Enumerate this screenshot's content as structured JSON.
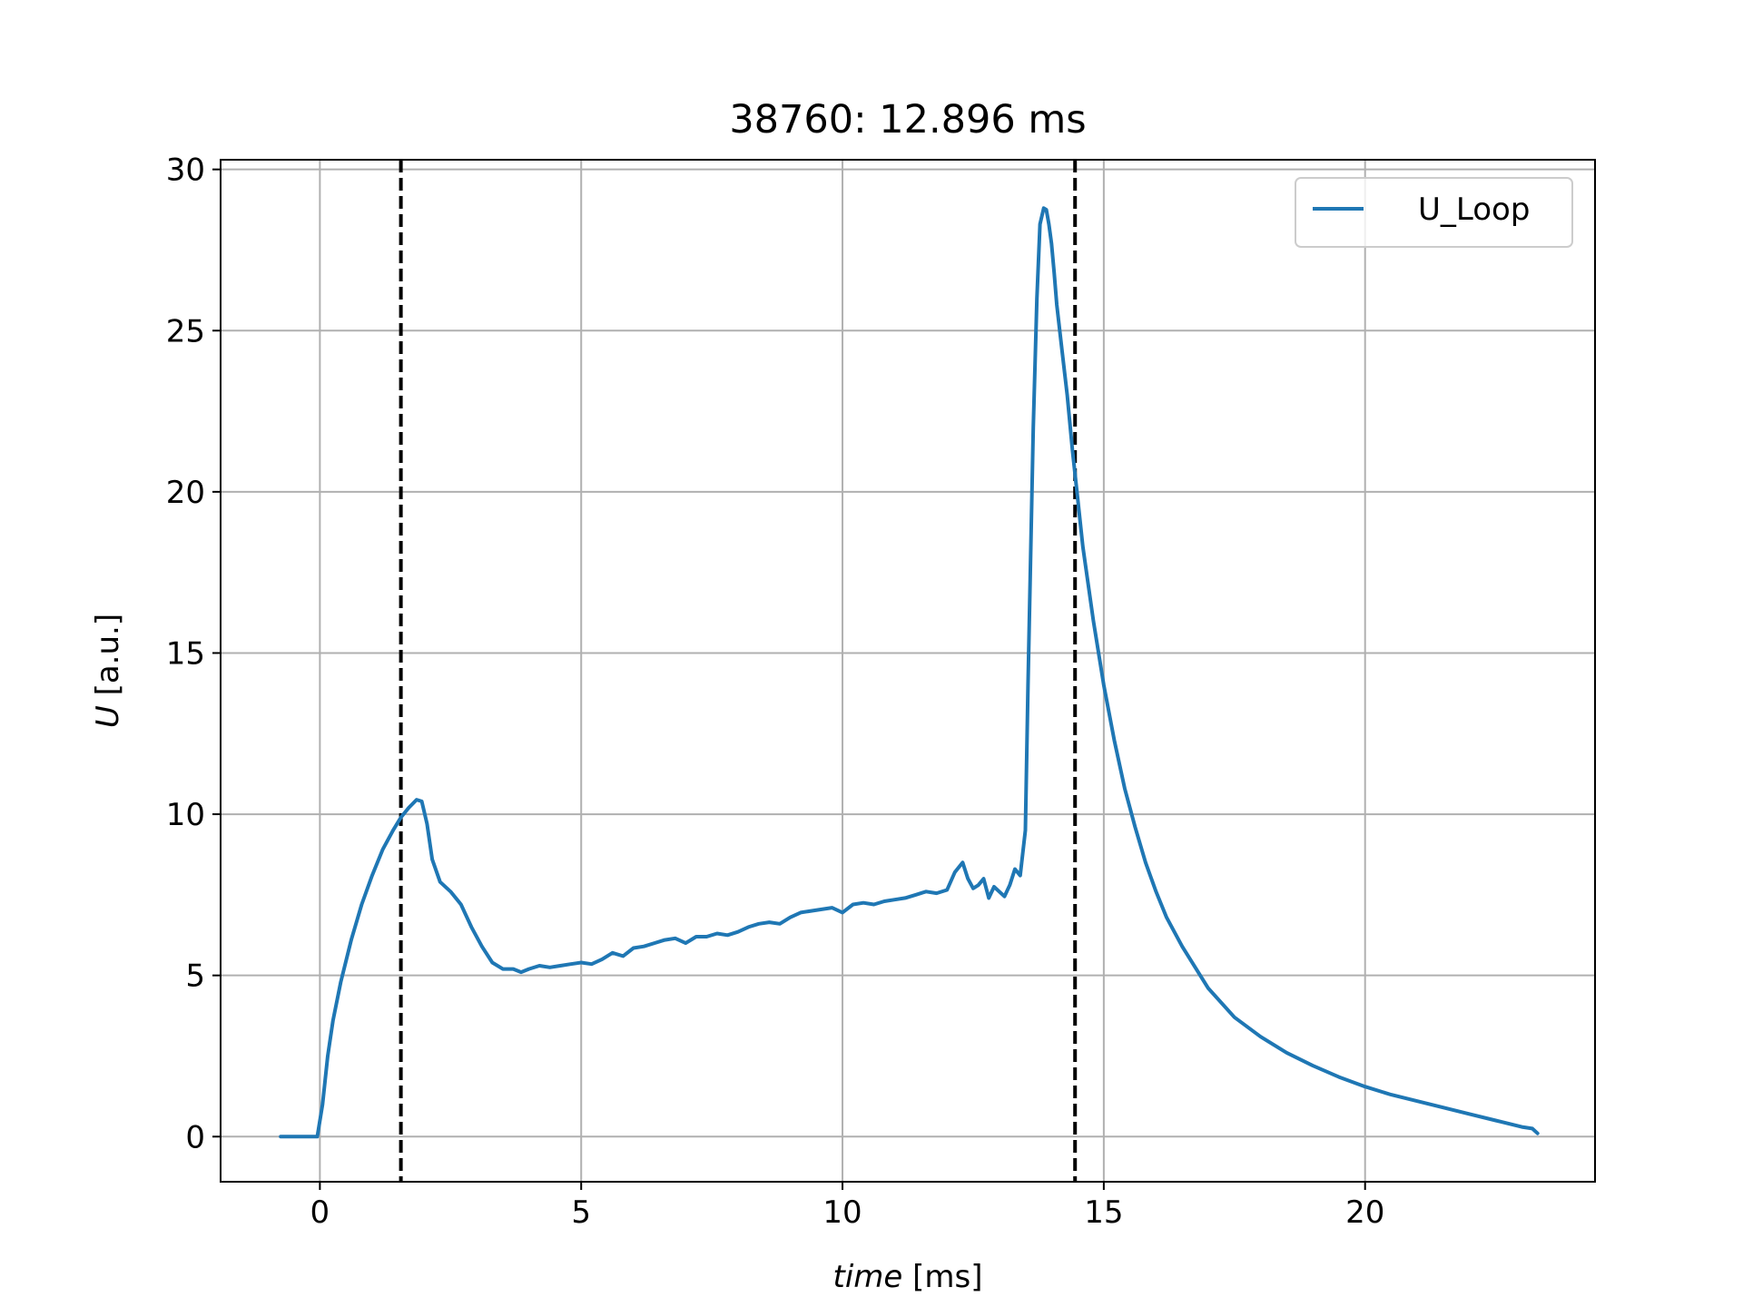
{
  "chart_data": {
    "type": "line",
    "title": "38760: 12.896 ms",
    "xlabel": {
      "italic": "time",
      "unit": " [ms]"
    },
    "ylabel": {
      "italic": "U",
      "unit": " [a.u.]"
    },
    "xlim": [
      -1.9,
      24.4
    ],
    "ylim": [
      -1.4,
      30.3
    ],
    "xticks": [
      0,
      5,
      10,
      15,
      20
    ],
    "yticks": [
      0,
      5,
      10,
      15,
      20,
      25,
      30
    ],
    "grid": true,
    "legend_position": "top-right",
    "vlines": [
      {
        "x": 1.55,
        "color": "#000000",
        "style": "dashed"
      },
      {
        "x": 14.45,
        "color": "#000000",
        "style": "dashed"
      }
    ],
    "series": [
      {
        "name": "U_Loop",
        "color": "#1f77b4",
        "x": [
          -0.75,
          -0.5,
          -0.3,
          -0.15,
          -0.05,
          0.05,
          0.15,
          0.25,
          0.4,
          0.6,
          0.8,
          1.0,
          1.2,
          1.4,
          1.55,
          1.7,
          1.85,
          1.95,
          2.05,
          2.15,
          2.3,
          2.5,
          2.7,
          2.9,
          3.1,
          3.3,
          3.5,
          3.7,
          3.85,
          4.0,
          4.2,
          4.4,
          4.6,
          4.8,
          5.0,
          5.2,
          5.4,
          5.6,
          5.8,
          6.0,
          6.2,
          6.4,
          6.6,
          6.8,
          7.0,
          7.2,
          7.4,
          7.6,
          7.8,
          8.0,
          8.2,
          8.4,
          8.6,
          8.8,
          9.0,
          9.2,
          9.4,
          9.6,
          9.8,
          10.0,
          10.2,
          10.4,
          10.6,
          10.8,
          11.0,
          11.2,
          11.4,
          11.6,
          11.8,
          12.0,
          12.15,
          12.3,
          12.4,
          12.5,
          12.6,
          12.7,
          12.8,
          12.9,
          13.0,
          13.1,
          13.2,
          13.3,
          13.4,
          13.5,
          13.55,
          13.65,
          13.72,
          13.78,
          13.85,
          13.9,
          13.95,
          14.0,
          14.05,
          14.1,
          14.2,
          14.3,
          14.4,
          14.5,
          14.6,
          14.8,
          15.0,
          15.2,
          15.4,
          15.6,
          15.8,
          16.0,
          16.2,
          16.5,
          17.0,
          17.5,
          18.0,
          18.5,
          19.0,
          19.5,
          20.0,
          20.5,
          21.0,
          21.5,
          22.0,
          22.5,
          23.0,
          23.2,
          23.3
        ],
        "y": [
          0.0,
          0.0,
          0.0,
          0.0,
          0.0,
          1.0,
          2.5,
          3.6,
          4.8,
          6.1,
          7.2,
          8.1,
          8.9,
          9.5,
          9.9,
          10.2,
          10.45,
          10.4,
          9.7,
          8.6,
          7.9,
          7.6,
          7.2,
          6.5,
          5.9,
          5.4,
          5.2,
          5.2,
          5.1,
          5.2,
          5.3,
          5.25,
          5.3,
          5.35,
          5.4,
          5.35,
          5.5,
          5.7,
          5.6,
          5.85,
          5.9,
          6.0,
          6.1,
          6.15,
          6.0,
          6.2,
          6.2,
          6.3,
          6.25,
          6.35,
          6.5,
          6.6,
          6.65,
          6.6,
          6.8,
          6.95,
          7.0,
          7.05,
          7.1,
          6.95,
          7.2,
          7.25,
          7.2,
          7.3,
          7.35,
          7.4,
          7.5,
          7.6,
          7.55,
          7.65,
          8.2,
          8.5,
          8.0,
          7.7,
          7.8,
          8.0,
          7.4,
          7.75,
          7.6,
          7.45,
          7.8,
          8.3,
          8.1,
          9.5,
          14.0,
          22.0,
          26.0,
          28.3,
          28.8,
          28.75,
          28.3,
          27.7,
          26.8,
          25.8,
          24.4,
          23.0,
          21.3,
          19.8,
          18.3,
          16.0,
          14.0,
          12.3,
          10.8,
          9.6,
          8.5,
          7.6,
          6.8,
          5.9,
          4.6,
          3.7,
          3.1,
          2.6,
          2.2,
          1.85,
          1.55,
          1.3,
          1.1,
          0.9,
          0.7,
          0.5,
          0.3,
          0.25,
          0.1
        ]
      }
    ]
  }
}
